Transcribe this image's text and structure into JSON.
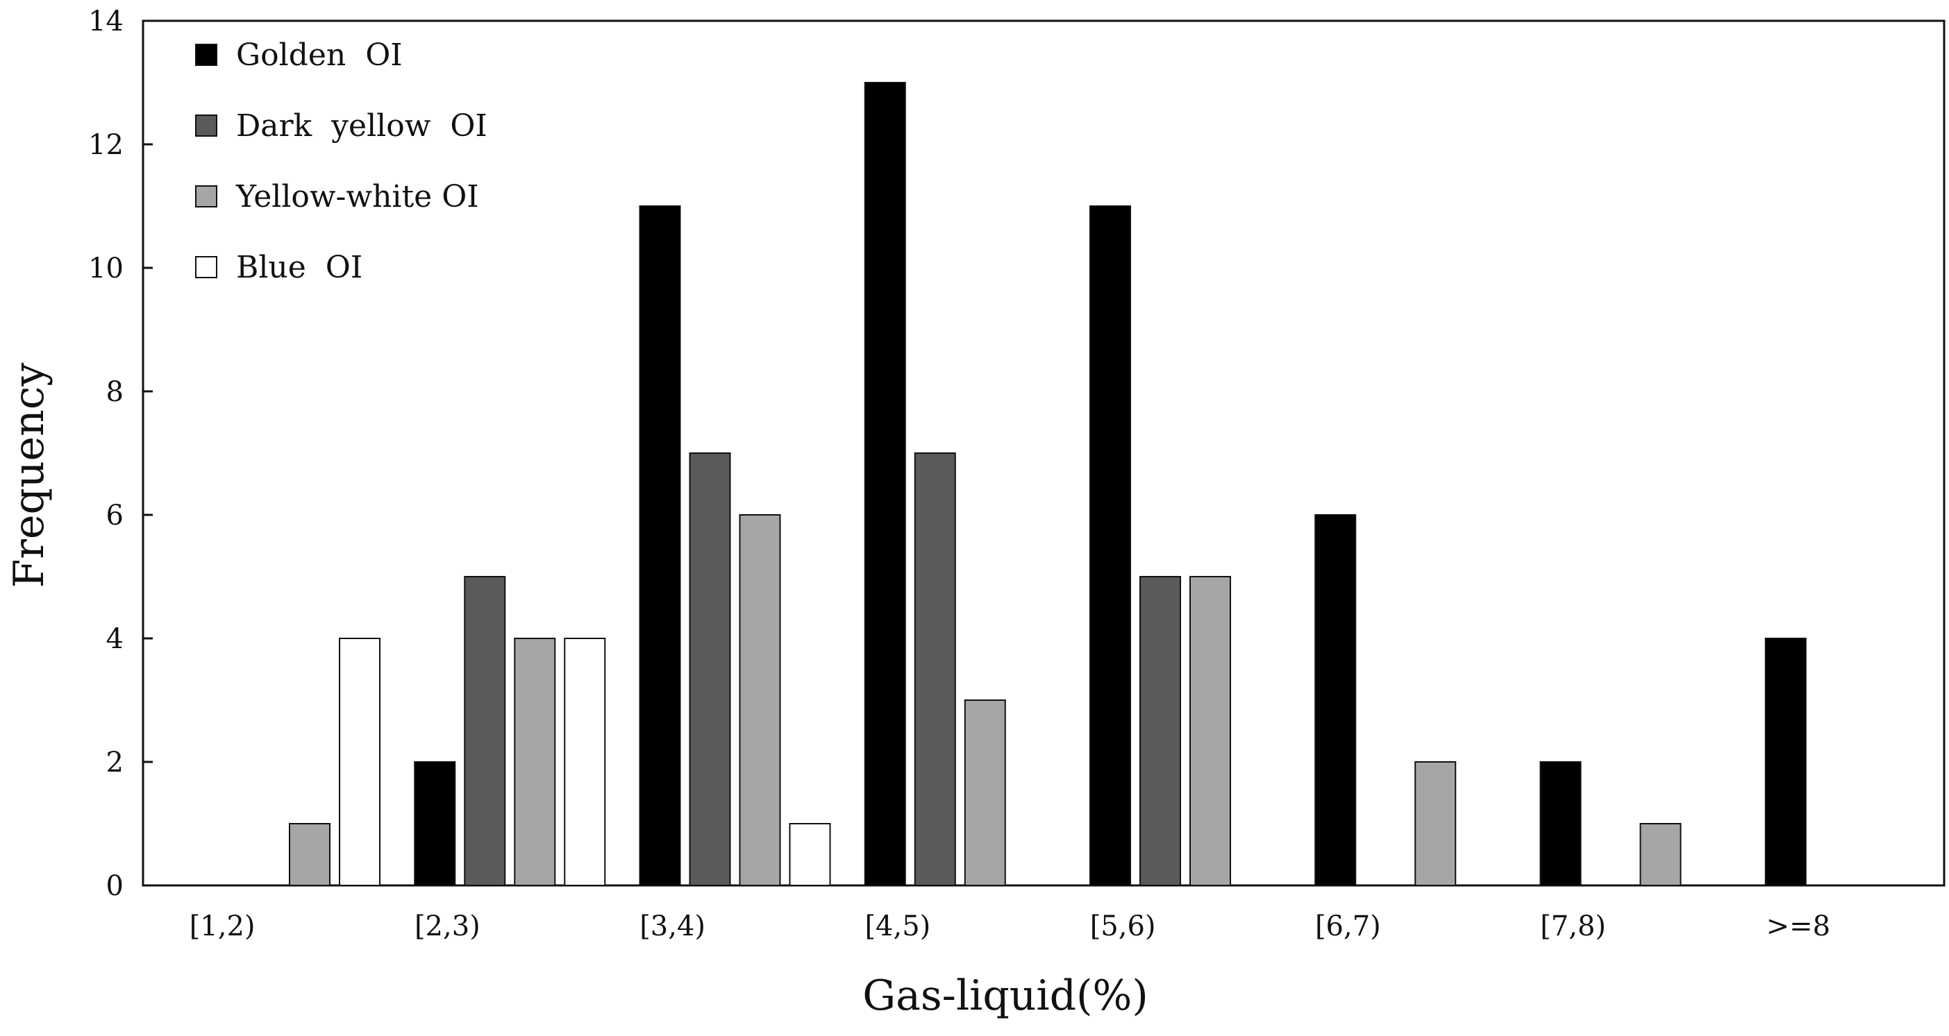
{
  "chart_data": {
    "type": "bar",
    "title": "",
    "xlabel": "Gas-liquid(%)",
    "ylabel": "Frequency",
    "ylim": [
      0,
      14
    ],
    "yticks": [
      0,
      2,
      4,
      6,
      8,
      10,
      12,
      14
    ],
    "grid": false,
    "legend_position": "top-left",
    "categories": [
      "[1,2)",
      "[2,3)",
      "[3,4)",
      "[4,5)",
      "[5,6)",
      "[6,7)",
      "[7,8)",
      ">=8"
    ],
    "series": [
      {
        "name": "Golden  OI",
        "color": "#000000",
        "values": [
          0,
          2,
          11,
          13,
          11,
          6,
          2,
          4
        ]
      },
      {
        "name": "Dark  yellow  OI",
        "color": "#5a5a5a",
        "values": [
          0,
          5,
          7,
          7,
          5,
          0,
          0,
          0
        ]
      },
      {
        "name": "Yellow-white OI",
        "color": "#a6a6a6",
        "values": [
          1,
          4,
          6,
          3,
          5,
          2,
          1,
          0
        ]
      },
      {
        "name": "Blue  OI",
        "color": "#ffffff",
        "values": [
          4,
          4,
          1,
          0,
          0,
          0,
          0,
          0
        ]
      }
    ]
  }
}
